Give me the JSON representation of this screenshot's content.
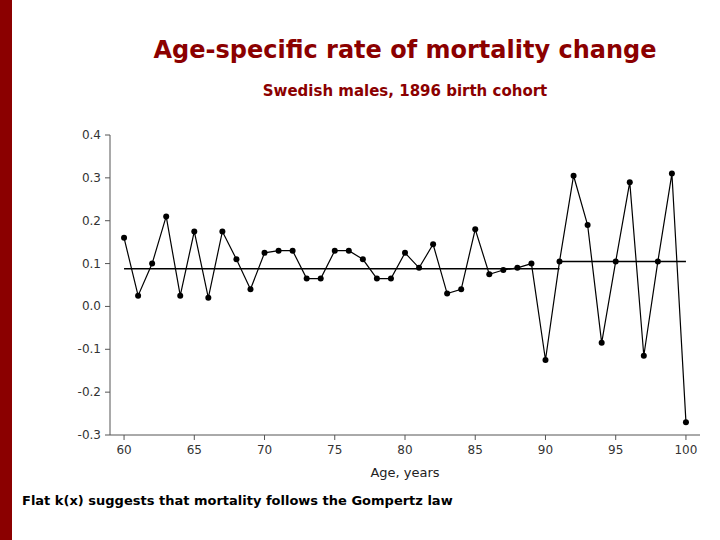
{
  "chart_data": {
    "type": "line",
    "title": "Age-specific rate of mortality change",
    "subtitle": "Swedish males, 1896 birth cohort",
    "xlabel": "Age, years",
    "footer": "Flat k(x) suggests that mortality follows the Gompertz law",
    "x": [
      60,
      61,
      62,
      63,
      64,
      65,
      66,
      67,
      68,
      69,
      70,
      71,
      72,
      73,
      74,
      75,
      76,
      77,
      78,
      79,
      80,
      81,
      82,
      83,
      84,
      85,
      86,
      87,
      88,
      89,
      90,
      91,
      92,
      93,
      94,
      95,
      96,
      97,
      98,
      99,
      100
    ],
    "values": [
      0.16,
      0.025,
      0.1,
      0.21,
      0.025,
      0.175,
      0.02,
      0.175,
      0.11,
      0.04,
      0.125,
      0.13,
      0.13,
      0.065,
      0.065,
      0.13,
      0.13,
      0.11,
      0.065,
      0.065,
      0.125,
      0.09,
      0.145,
      0.03,
      0.04,
      0.18,
      0.075,
      0.085,
      0.09,
      0.1,
      -0.125,
      0.105,
      0.305,
      0.19,
      -0.085,
      0.105,
      0.29,
      -0.115,
      0.105,
      0.31,
      -0.27
    ],
    "color": "#000000",
    "marker": "circle",
    "reference_lines": [
      {
        "x_start": 60,
        "x_end": 91,
        "y": 0.088,
        "color": "#000000"
      },
      {
        "x_start": 91,
        "x_end": 100,
        "y": 0.105,
        "color": "#000000"
      }
    ],
    "xlim": [
      59,
      101
    ],
    "ylim": [
      -0.3,
      0.4
    ],
    "xticks": [
      60,
      65,
      70,
      75,
      80,
      85,
      90,
      95,
      100
    ],
    "yticks": [
      -0.3,
      -0.2,
      -0.1,
      {
        "value": 0.0,
        "label": "0.0"
      },
      0.1,
      0.2,
      0.3,
      0.4
    ],
    "grid": false
  }
}
